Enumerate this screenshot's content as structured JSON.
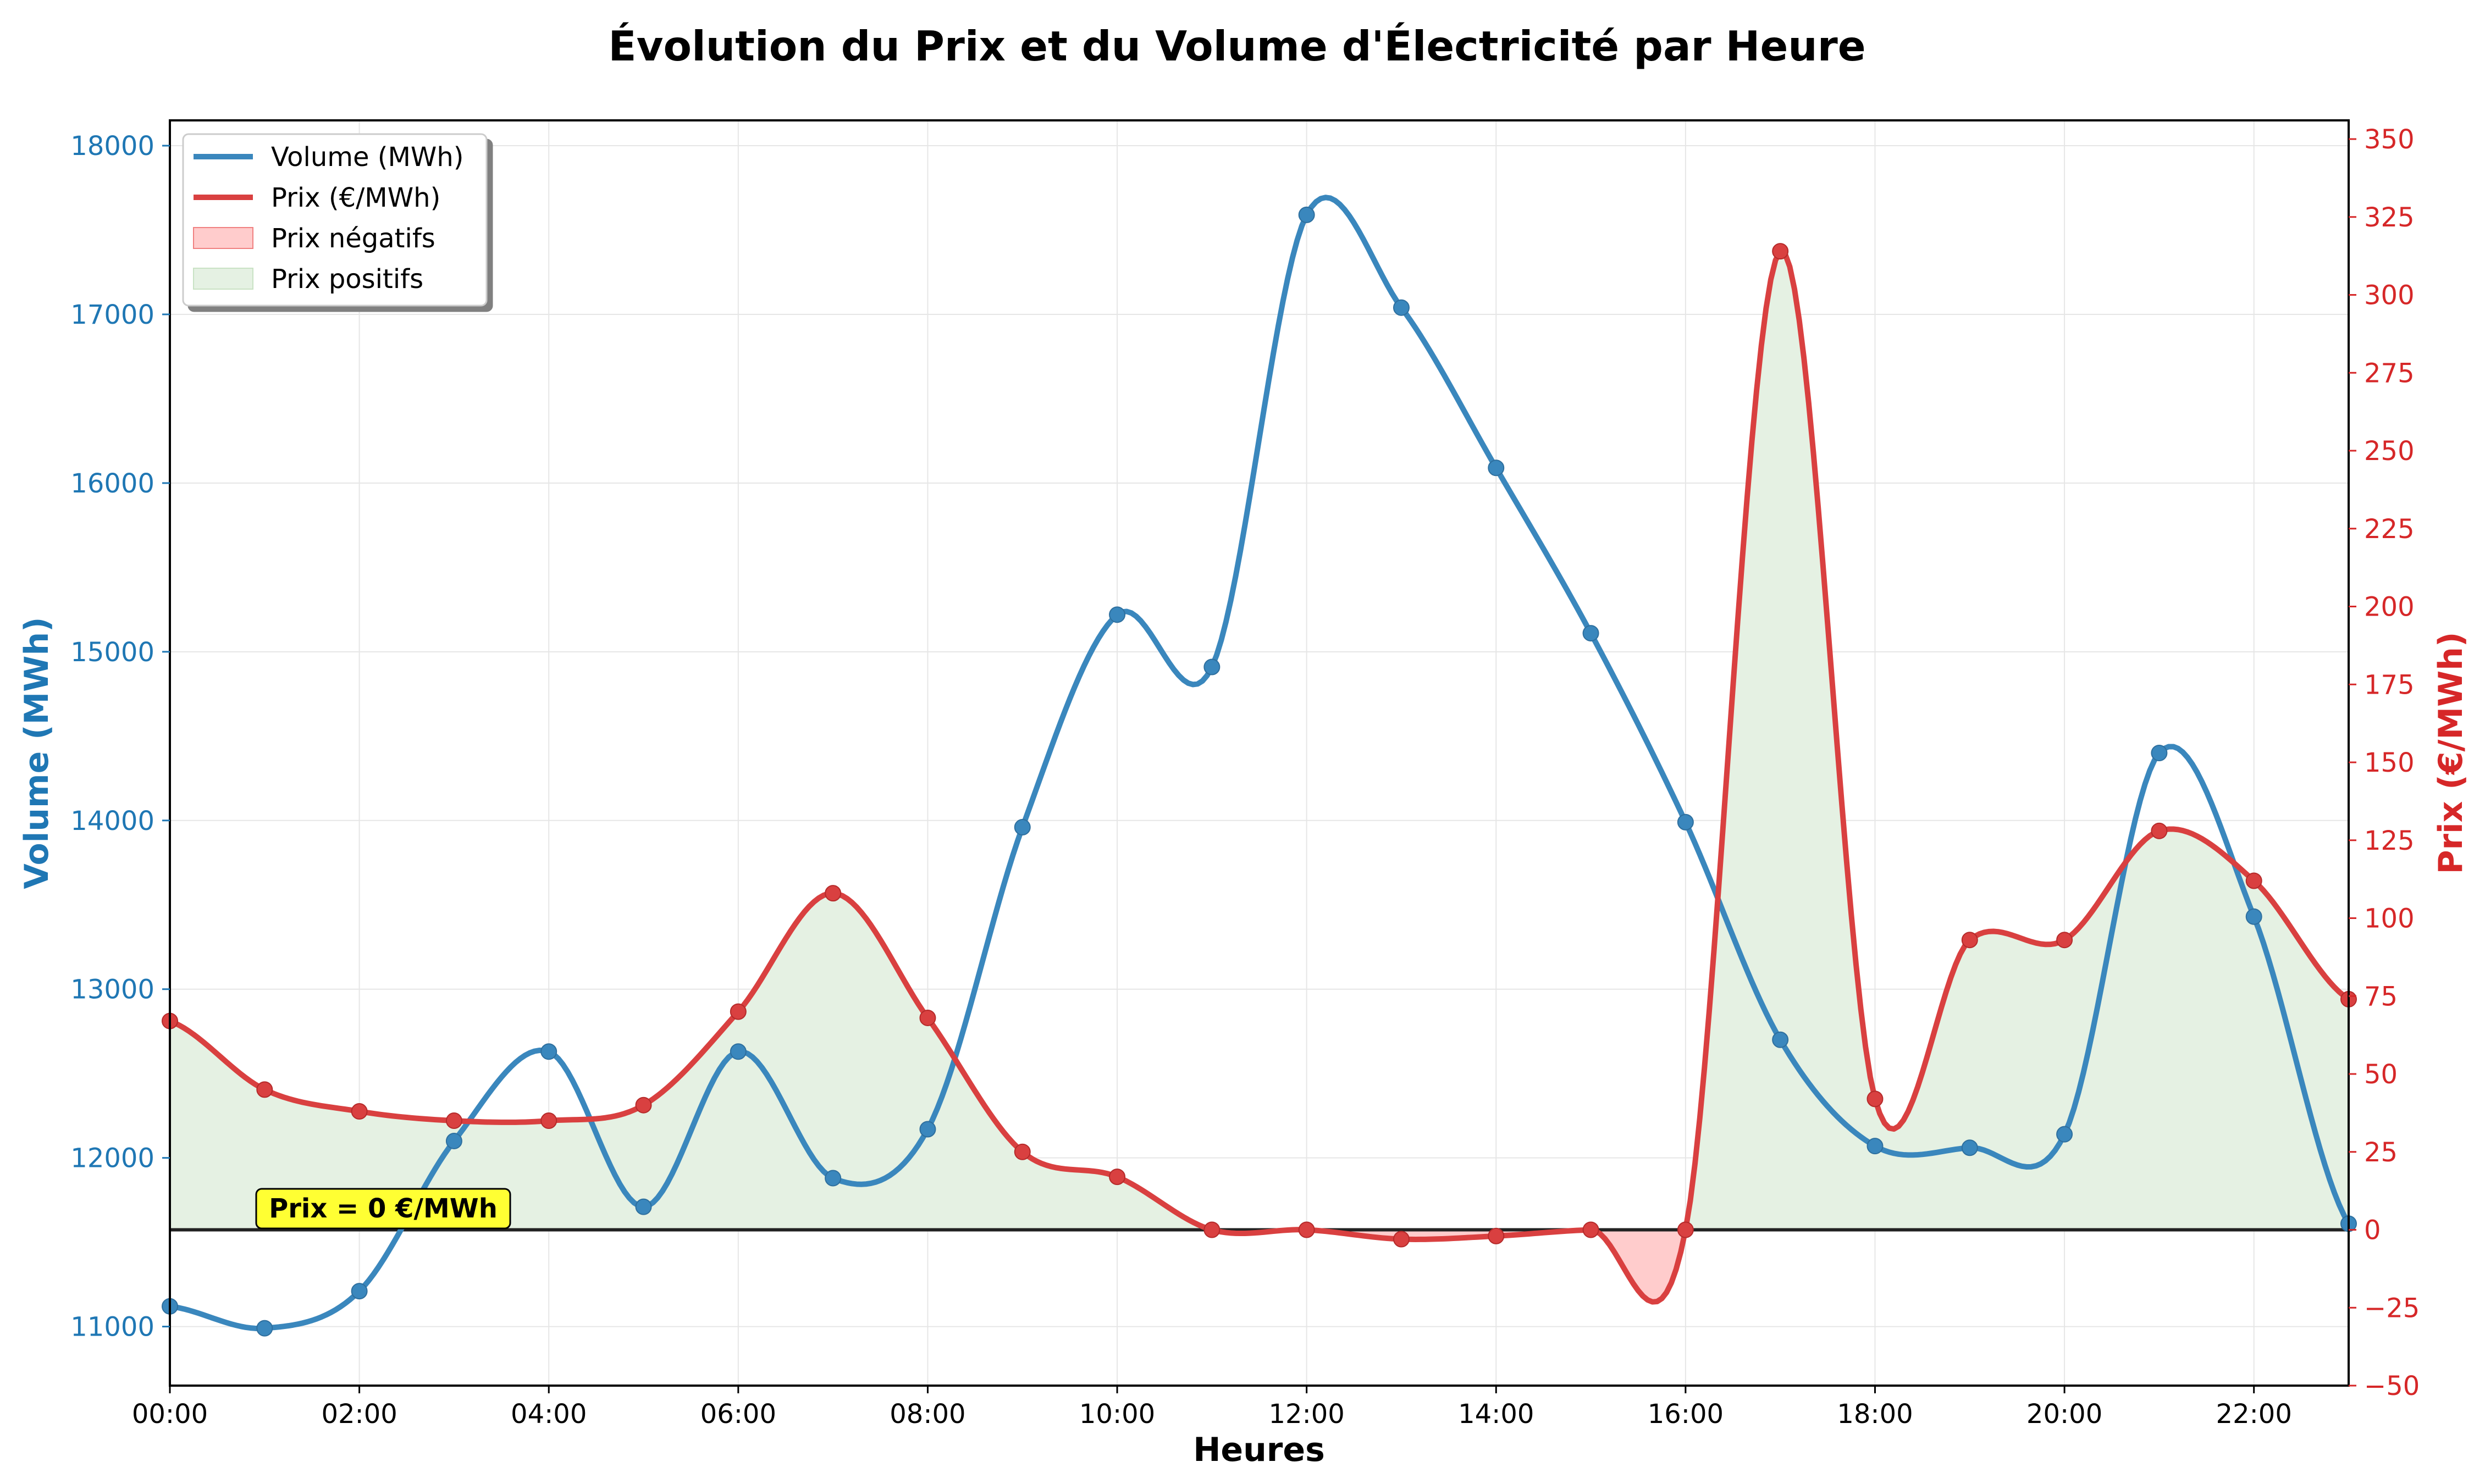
{
  "chart_data": {
    "type": "line",
    "title": "Évolution du Prix et du Volume d'Électricité par Heure",
    "xlabel": "Heures",
    "x": [
      "00:00",
      "01:00",
      "02:00",
      "03:00",
      "04:00",
      "05:00",
      "06:00",
      "07:00",
      "08:00",
      "09:00",
      "10:00",
      "11:00",
      "12:00",
      "13:00",
      "14:00",
      "15:00",
      "16:00",
      "17:00",
      "18:00",
      "19:00",
      "20:00",
      "21:00",
      "22:00",
      "23:00"
    ],
    "x_tick_labels": [
      "00:00",
      "02:00",
      "04:00",
      "06:00",
      "08:00",
      "10:00",
      "12:00",
      "14:00",
      "16:00",
      "18:00",
      "20:00",
      "22:00"
    ],
    "y_left": {
      "label": "Volume (MWh)",
      "lim": [
        10650,
        18150
      ],
      "ticks": [
        11000,
        12000,
        13000,
        14000,
        15000,
        16000,
        17000,
        18000
      ],
      "color": "#1f77b4"
    },
    "y_right": {
      "label": "Prix (€/MWh)",
      "lim": [
        -50,
        356
      ],
      "ticks": [
        -50,
        -25,
        0,
        25,
        50,
        75,
        100,
        125,
        150,
        175,
        200,
        225,
        250,
        275,
        300,
        325,
        350
      ],
      "color": "#d62728"
    },
    "series": [
      {
        "name": "Volume (MWh)",
        "axis": "left",
        "color": "#3a87bd",
        "values": [
          11120,
          10990,
          11210,
          12100,
          12630,
          11710,
          12630,
          11880,
          12170,
          13960,
          15220,
          14910,
          17590,
          17040,
          16090,
          15110,
          13990,
          12700,
          12070,
          12060,
          12140,
          14400,
          13430,
          11610
        ]
      },
      {
        "name": "Prix (€/MWh)",
        "axis": "right",
        "color": "#d94040",
        "values": [
          67,
          45,
          38,
          35,
          35,
          40,
          70,
          108,
          68,
          25,
          17,
          0,
          0,
          -3,
          -2,
          0,
          0,
          314,
          42,
          93,
          93,
          128,
          112,
          74
        ]
      }
    ],
    "fill_legend": [
      {
        "name": "Prix négatifs",
        "color": "#ffcccc",
        "edge": "#f08080"
      },
      {
        "name": "Prix positifs",
        "color": "#e5f1e3",
        "edge": "#c9e2c4"
      }
    ],
    "annotation": "Prix = 0 €/MWh",
    "grid": true,
    "legend_position": "top-left"
  }
}
